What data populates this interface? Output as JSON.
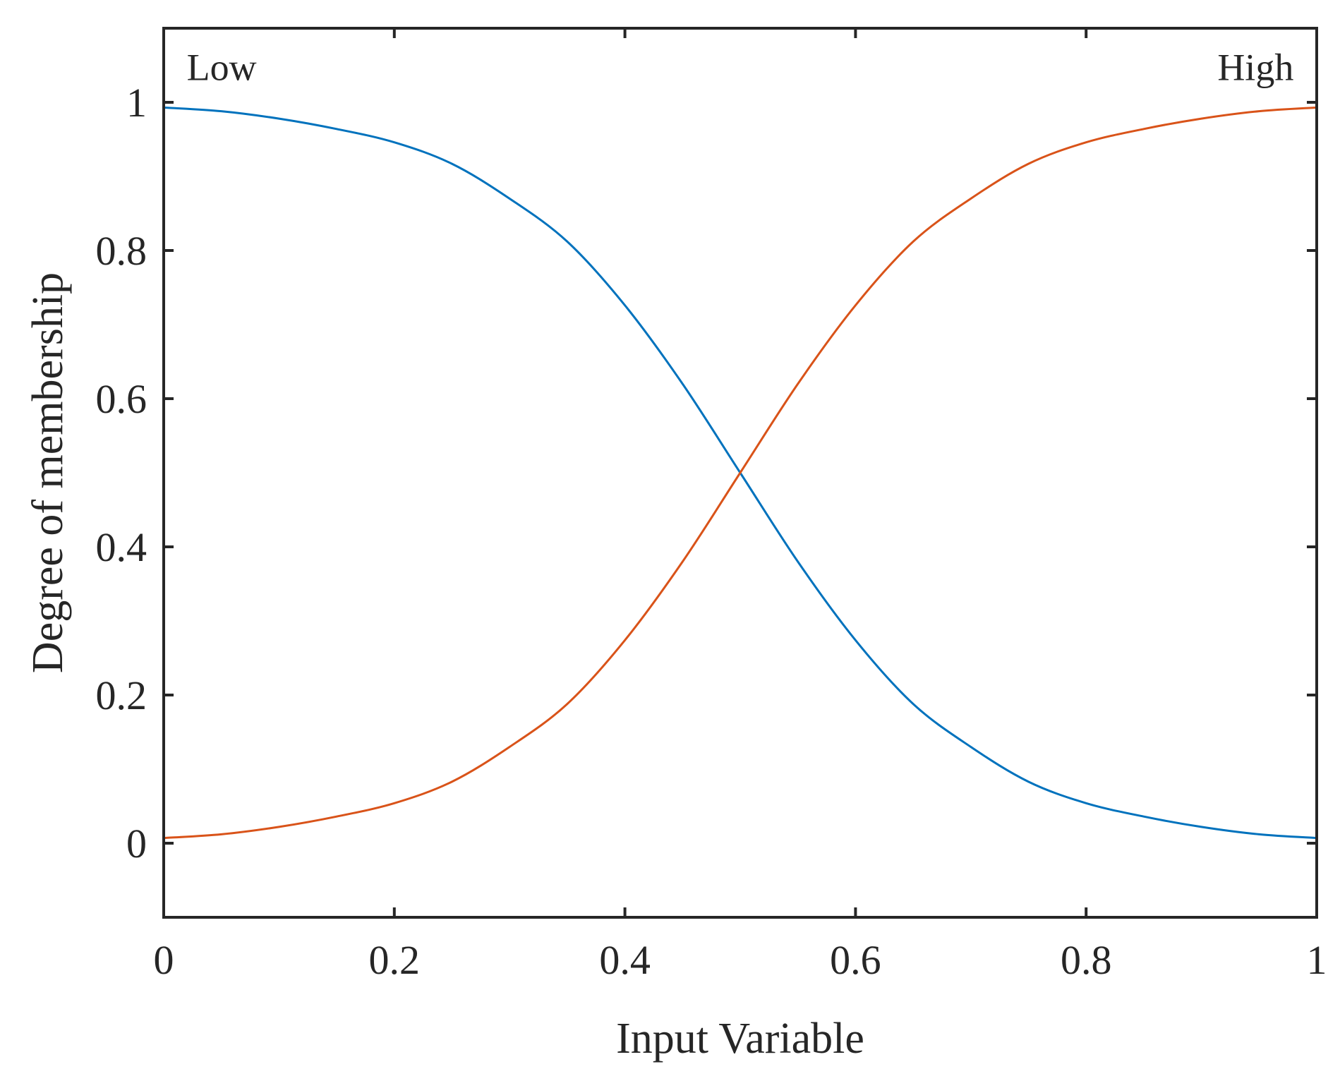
{
  "chart_data": {
    "type": "line",
    "xlabel": "Input Variable",
    "ylabel": "Degree of membership",
    "xlim": [
      0,
      1
    ],
    "ylim": [
      -0.1,
      1.1
    ],
    "x_ticks": [
      "0",
      "0.2",
      "0.4",
      "0.6",
      "0.8",
      "1"
    ],
    "y_ticks": [
      "0",
      "0.2",
      "0.4",
      "0.6",
      "0.8",
      "1"
    ],
    "grid": false,
    "annotations": [
      {
        "text": "Low",
        "x": 0.02,
        "y": 1.03
      },
      {
        "text": "High",
        "x": 0.98,
        "y": 1.03
      }
    ],
    "series": [
      {
        "color": "#0072BD",
        "x": [
          0,
          0.05,
          0.1,
          0.15,
          0.2,
          0.25,
          0.3,
          0.35,
          0.4,
          0.45,
          0.5,
          0.55,
          0.6,
          0.65,
          0.7,
          0.75,
          0.8,
          0.85,
          0.9,
          0.95,
          1
        ],
        "y": [
          0.993,
          0.988,
          0.978,
          0.964,
          0.946,
          0.917,
          0.87,
          0.812,
          0.726,
          0.62,
          0.5,
          0.38,
          0.274,
          0.188,
          0.13,
          0.083,
          0.054,
          0.036,
          0.022,
          0.012,
          0.007
        ]
      },
      {
        "color": "#D95319",
        "x": [
          0,
          0.05,
          0.1,
          0.15,
          0.2,
          0.25,
          0.3,
          0.35,
          0.4,
          0.45,
          0.5,
          0.55,
          0.6,
          0.65,
          0.7,
          0.75,
          0.8,
          0.85,
          0.9,
          0.95,
          1
        ],
        "y": [
          0.007,
          0.012,
          0.022,
          0.036,
          0.054,
          0.083,
          0.13,
          0.188,
          0.274,
          0.38,
          0.5,
          0.62,
          0.726,
          0.812,
          0.87,
          0.917,
          0.946,
          0.964,
          0.978,
          0.988,
          0.993
        ]
      }
    ]
  }
}
